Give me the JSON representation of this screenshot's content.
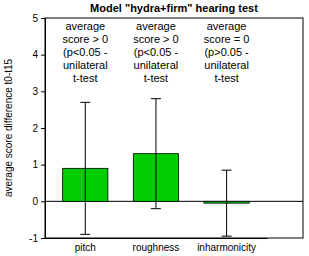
{
  "chart_data": {
    "type": "bar",
    "title": "Model \"hydra+firm\" hearing test",
    "y_label": "average score difference t0-t15",
    "categories": [
      "pitch",
      "roughness",
      "inharmonicity"
    ],
    "values": [
      0.9,
      1.3,
      -0.05
    ],
    "errors": [
      1.8,
      1.5,
      0.9
    ],
    "color": "#00cc00",
    "ylim": [
      -1,
      5
    ],
    "yticks": [
      -1,
      0,
      1,
      2,
      3,
      4,
      5
    ],
    "grid": false,
    "annotations": [
      [
        "average",
        "score > 0",
        "(p<0.05 -",
        "unilateral",
        "t-test"
      ],
      [
        "average",
        "score > 0",
        "(p<0.05 -",
        "unilateral",
        "t-test"
      ],
      [
        "average",
        "score = 0",
        "(p>0.05 -",
        "unilateral",
        "t-test"
      ]
    ]
  }
}
